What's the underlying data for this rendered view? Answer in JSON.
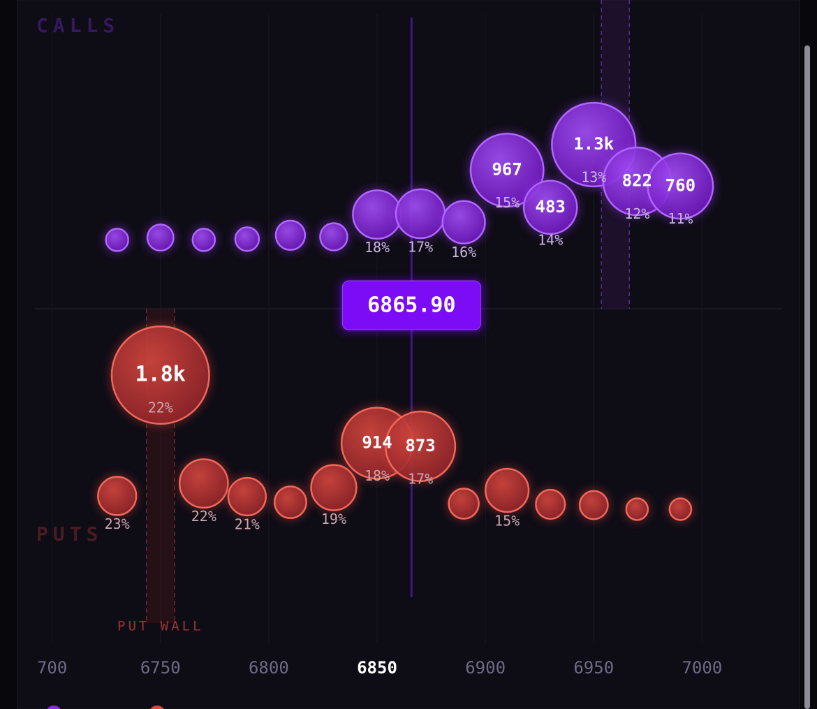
{
  "chart_data": {
    "type": "bubble",
    "x": [
      6730,
      6750,
      6770,
      6790,
      6810,
      6830,
      6850,
      6870,
      6890,
      6910,
      6930,
      6950,
      6970,
      6990
    ],
    "series": [
      {
        "name": "CALLS",
        "color": "#9a3cf0",
        "values": [
          60,
          90,
          60,
          70,
          120,
          100,
          390,
          400,
          290,
          967,
          483,
          1300,
          822,
          760
        ],
        "value_labels": [
          null,
          null,
          null,
          null,
          null,
          null,
          null,
          null,
          null,
          "967",
          "483",
          "1.3k",
          "822",
          "760"
        ],
        "percent_labels": [
          null,
          null,
          null,
          null,
          null,
          null,
          "18%",
          "17%",
          "16%",
          "15%",
          "14%",
          "13%",
          "12%",
          "11%"
        ]
      },
      {
        "name": "PUTS",
        "color": "#d8463c",
        "values": [
          227,
          1800,
          390,
          218,
          145,
          336,
          914,
          873,
          127,
          300,
          118,
          109,
          55,
          55
        ],
        "value_labels": [
          null,
          "1.8k",
          null,
          null,
          null,
          null,
          "914",
          "873",
          null,
          null,
          null,
          null,
          null,
          null
        ],
        "percent_labels": [
          "23%",
          "22%",
          "22%",
          "21%",
          null,
          "19%",
          "18%",
          "17%",
          null,
          "15%",
          null,
          null,
          null,
          null
        ]
      }
    ],
    "xlim": [
      6684,
      7045
    ],
    "xticks": [
      {
        "value": 6700,
        "label": "700"
      },
      6750,
      6800,
      6850,
      6900,
      6950,
      7000
    ],
    "highlight_tick": 6850,
    "price": {
      "value": 6865.9,
      "label": "6865.90"
    },
    "put_wall": {
      "value": 6750,
      "label": "PUT WALL"
    },
    "call_wall": 6960,
    "grid": true
  }
}
